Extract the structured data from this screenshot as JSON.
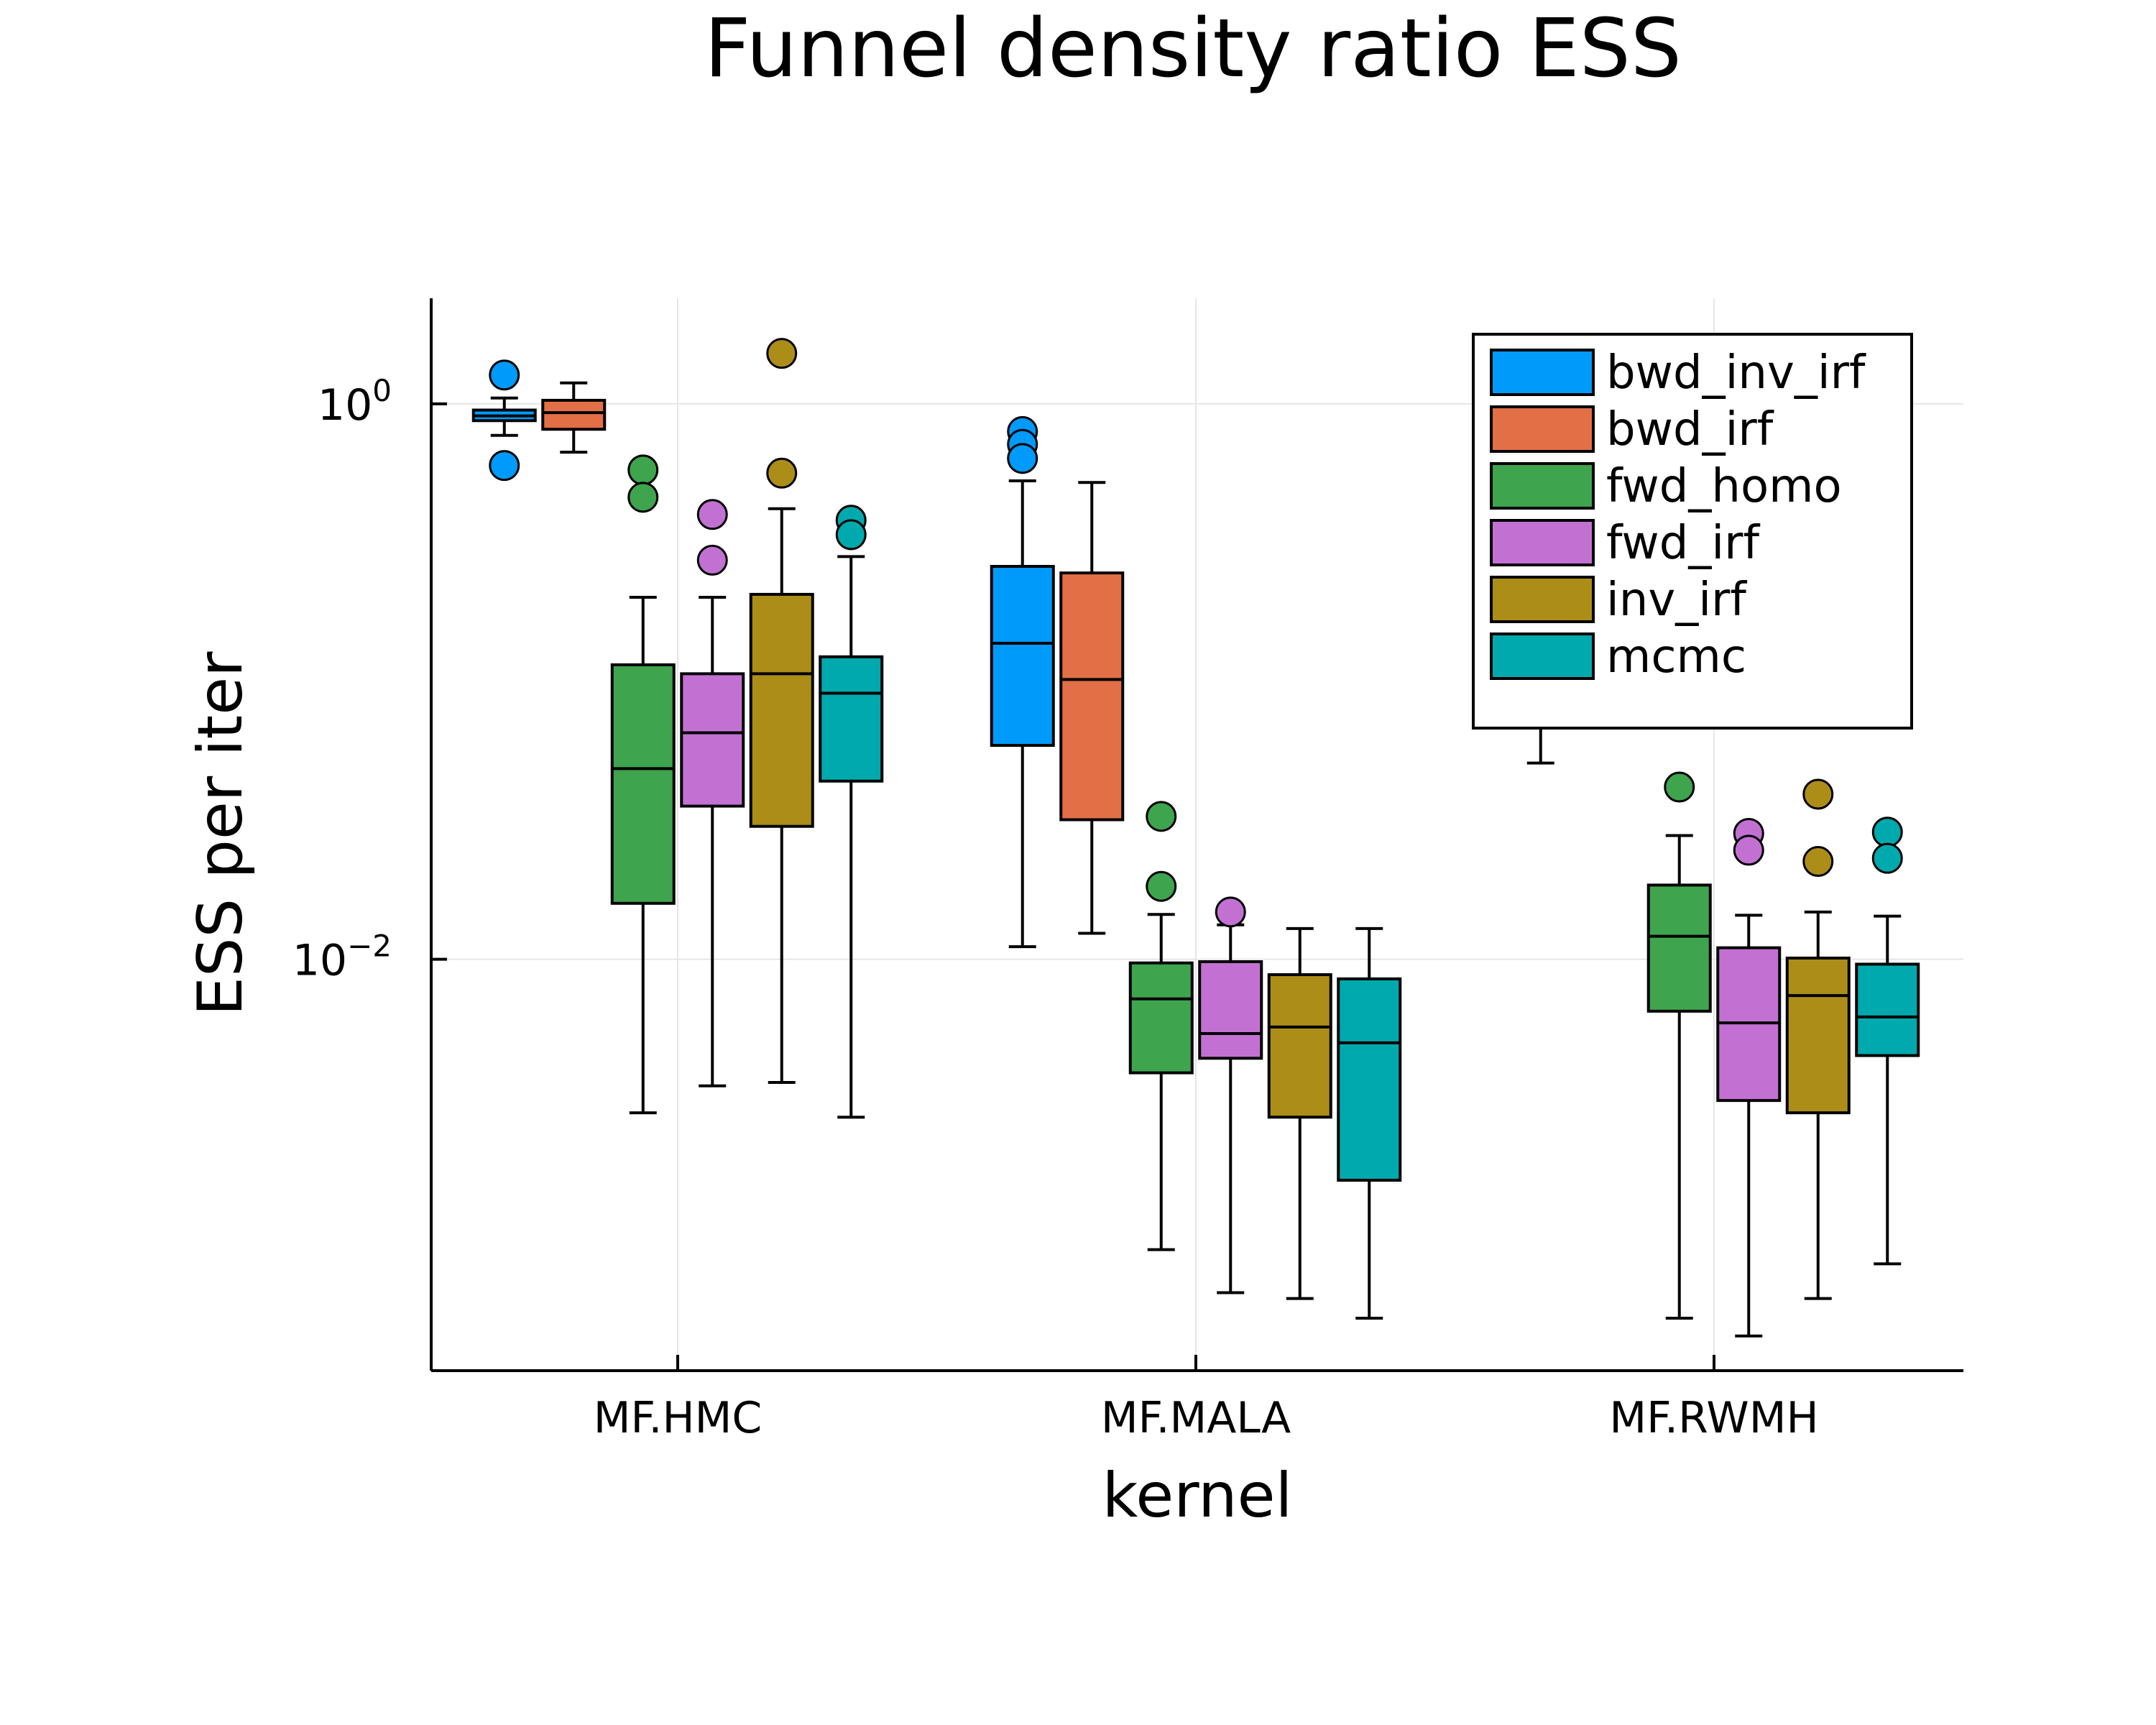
{
  "chart_data": {
    "type": "box",
    "title": "Funnel density ratio ESS",
    "xlabel": "kernel",
    "ylabel": "ESS per iter",
    "yscale": "log10",
    "ylim": [
      0.00033,
      2.4
    ],
    "grid": true,
    "legend_position": "top-right",
    "categories": [
      "MF.HMC",
      "MF.MALA",
      "MF.RWMH"
    ],
    "y_ticks": [
      {
        "value": 1,
        "label_base": "10",
        "label_exp": "0"
      },
      {
        "value": 0.01,
        "label_base": "10",
        "label_exp": "−2"
      }
    ],
    "series": [
      {
        "name": "bwd_inv_irf",
        "color": "#009AFA",
        "boxes": [
          {
            "category": "MF.HMC",
            "whisker_low": 0.77,
            "q1": 0.87,
            "median": 0.905,
            "q3": 0.95,
            "whisker_high": 1.05,
            "outliers": [
              1.27,
              0.6
            ]
          },
          {
            "category": "MF.MALA",
            "whisker_low": 0.0111,
            "q1": 0.0589,
            "median": 0.1374,
            "q3": 0.2599,
            "whisker_high": 0.5282,
            "outliers": [
              0.795,
              0.715,
              0.636
            ]
          },
          {
            "category": "MF.RWMH",
            "whisker_low": 0.0509,
            "q1": null,
            "median": null,
            "q3": null,
            "whisker_high": null,
            "outliers": []
          }
        ]
      },
      {
        "name": "bwd_irf",
        "color": "#E36F47",
        "boxes": [
          {
            "category": "MF.HMC",
            "whisker_low": 0.67,
            "q1": 0.81,
            "median": 0.93,
            "q3": 1.03,
            "whisker_high": 1.19,
            "outliers": []
          },
          {
            "category": "MF.MALA",
            "whisker_low": 0.0124,
            "q1": 0.0318,
            "median": 0.1017,
            "q3": 0.2461,
            "whisker_high": 0.5213,
            "outliers": []
          },
          {
            "category": "MF.RWMH",
            "whisker_low": null,
            "q1": null,
            "median": null,
            "q3": null,
            "whisker_high": null,
            "outliers": []
          }
        ]
      },
      {
        "name": "fwd_homo",
        "color": "#3EA44E",
        "boxes": [
          {
            "category": "MF.HMC",
            "whisker_low": 0.0028,
            "q1": 0.0159,
            "median": 0.0486,
            "q3": 0.1149,
            "whisker_high": 0.2011,
            "outliers": [
              0.578,
              0.461
            ]
          },
          {
            "category": "MF.MALA",
            "whisker_low": 0.0009,
            "q1": 0.0039,
            "median": 0.0072,
            "q3": 0.0097,
            "whisker_high": 0.0145,
            "outliers": [
              0.0327,
              0.0183
            ]
          },
          {
            "category": "MF.RWMH",
            "whisker_low": 0.00051,
            "q1": 0.0065,
            "median": 0.0121,
            "q3": 0.0185,
            "whisker_high": 0.0279,
            "outliers": [
              0.0417
            ]
          }
        ]
      },
      {
        "name": "fwd_irf",
        "color": "#C271D2",
        "boxes": [
          {
            "category": "MF.HMC",
            "whisker_low": 0.0035,
            "q1": 0.0356,
            "median": 0.0654,
            "q3": 0.1067,
            "whisker_high": 0.2011,
            "outliers": [
              0.3997,
              0.2735
            ]
          },
          {
            "category": "MF.MALA",
            "whisker_low": 0.00063,
            "q1": 0.0044,
            "median": 0.0054,
            "q3": 0.0098,
            "whisker_high": 0.0133,
            "outliers": [
              0.0148
            ]
          },
          {
            "category": "MF.RWMH",
            "whisker_low": 0.00044,
            "q1": 0.0031,
            "median": 0.0059,
            "q3": 0.011,
            "whisker_high": 0.0144,
            "outliers": [
              0.0284,
              0.0247
            ]
          }
        ]
      },
      {
        "name": "inv_irf",
        "color": "#AC8D18",
        "boxes": [
          {
            "category": "MF.HMC",
            "whisker_low": 0.0036,
            "q1": 0.0301,
            "median": 0.1067,
            "q3": 0.2061,
            "whisker_high": 0.4192,
            "outliers": [
              1.52,
              0.563
            ]
          },
          {
            "category": "MF.MALA",
            "whisker_low": 0.0006,
            "q1": 0.0027,
            "median": 0.0057,
            "q3": 0.0088,
            "whisker_high": 0.0129,
            "outliers": []
          },
          {
            "category": "MF.RWMH",
            "whisker_low": 0.0006,
            "q1": 0.0028,
            "median": 0.0074,
            "q3": 0.0101,
            "whisker_high": 0.0148,
            "outliers": [
              0.0393,
              0.0225
            ]
          }
        ]
      },
      {
        "name": "mcmc",
        "color": "#00A9AD",
        "boxes": [
          {
            "category": "MF.HMC",
            "whisker_low": 0.0027,
            "q1": 0.0438,
            "median": 0.0908,
            "q3": 0.1228,
            "whisker_high": 0.2818,
            "outliers": [
              0.381,
              0.338
            ]
          },
          {
            "category": "MF.MALA",
            "whisker_low": 0.00051,
            "q1": 0.0016,
            "median": 0.005,
            "q3": 0.0085,
            "whisker_high": 0.0129,
            "outliers": []
          },
          {
            "category": "MF.RWMH",
            "whisker_low": 0.0008,
            "q1": 0.0045,
            "median": 0.0062,
            "q3": 0.0096,
            "whisker_high": 0.0143,
            "outliers": [
              0.0287,
              0.0231
            ]
          }
        ]
      }
    ]
  }
}
